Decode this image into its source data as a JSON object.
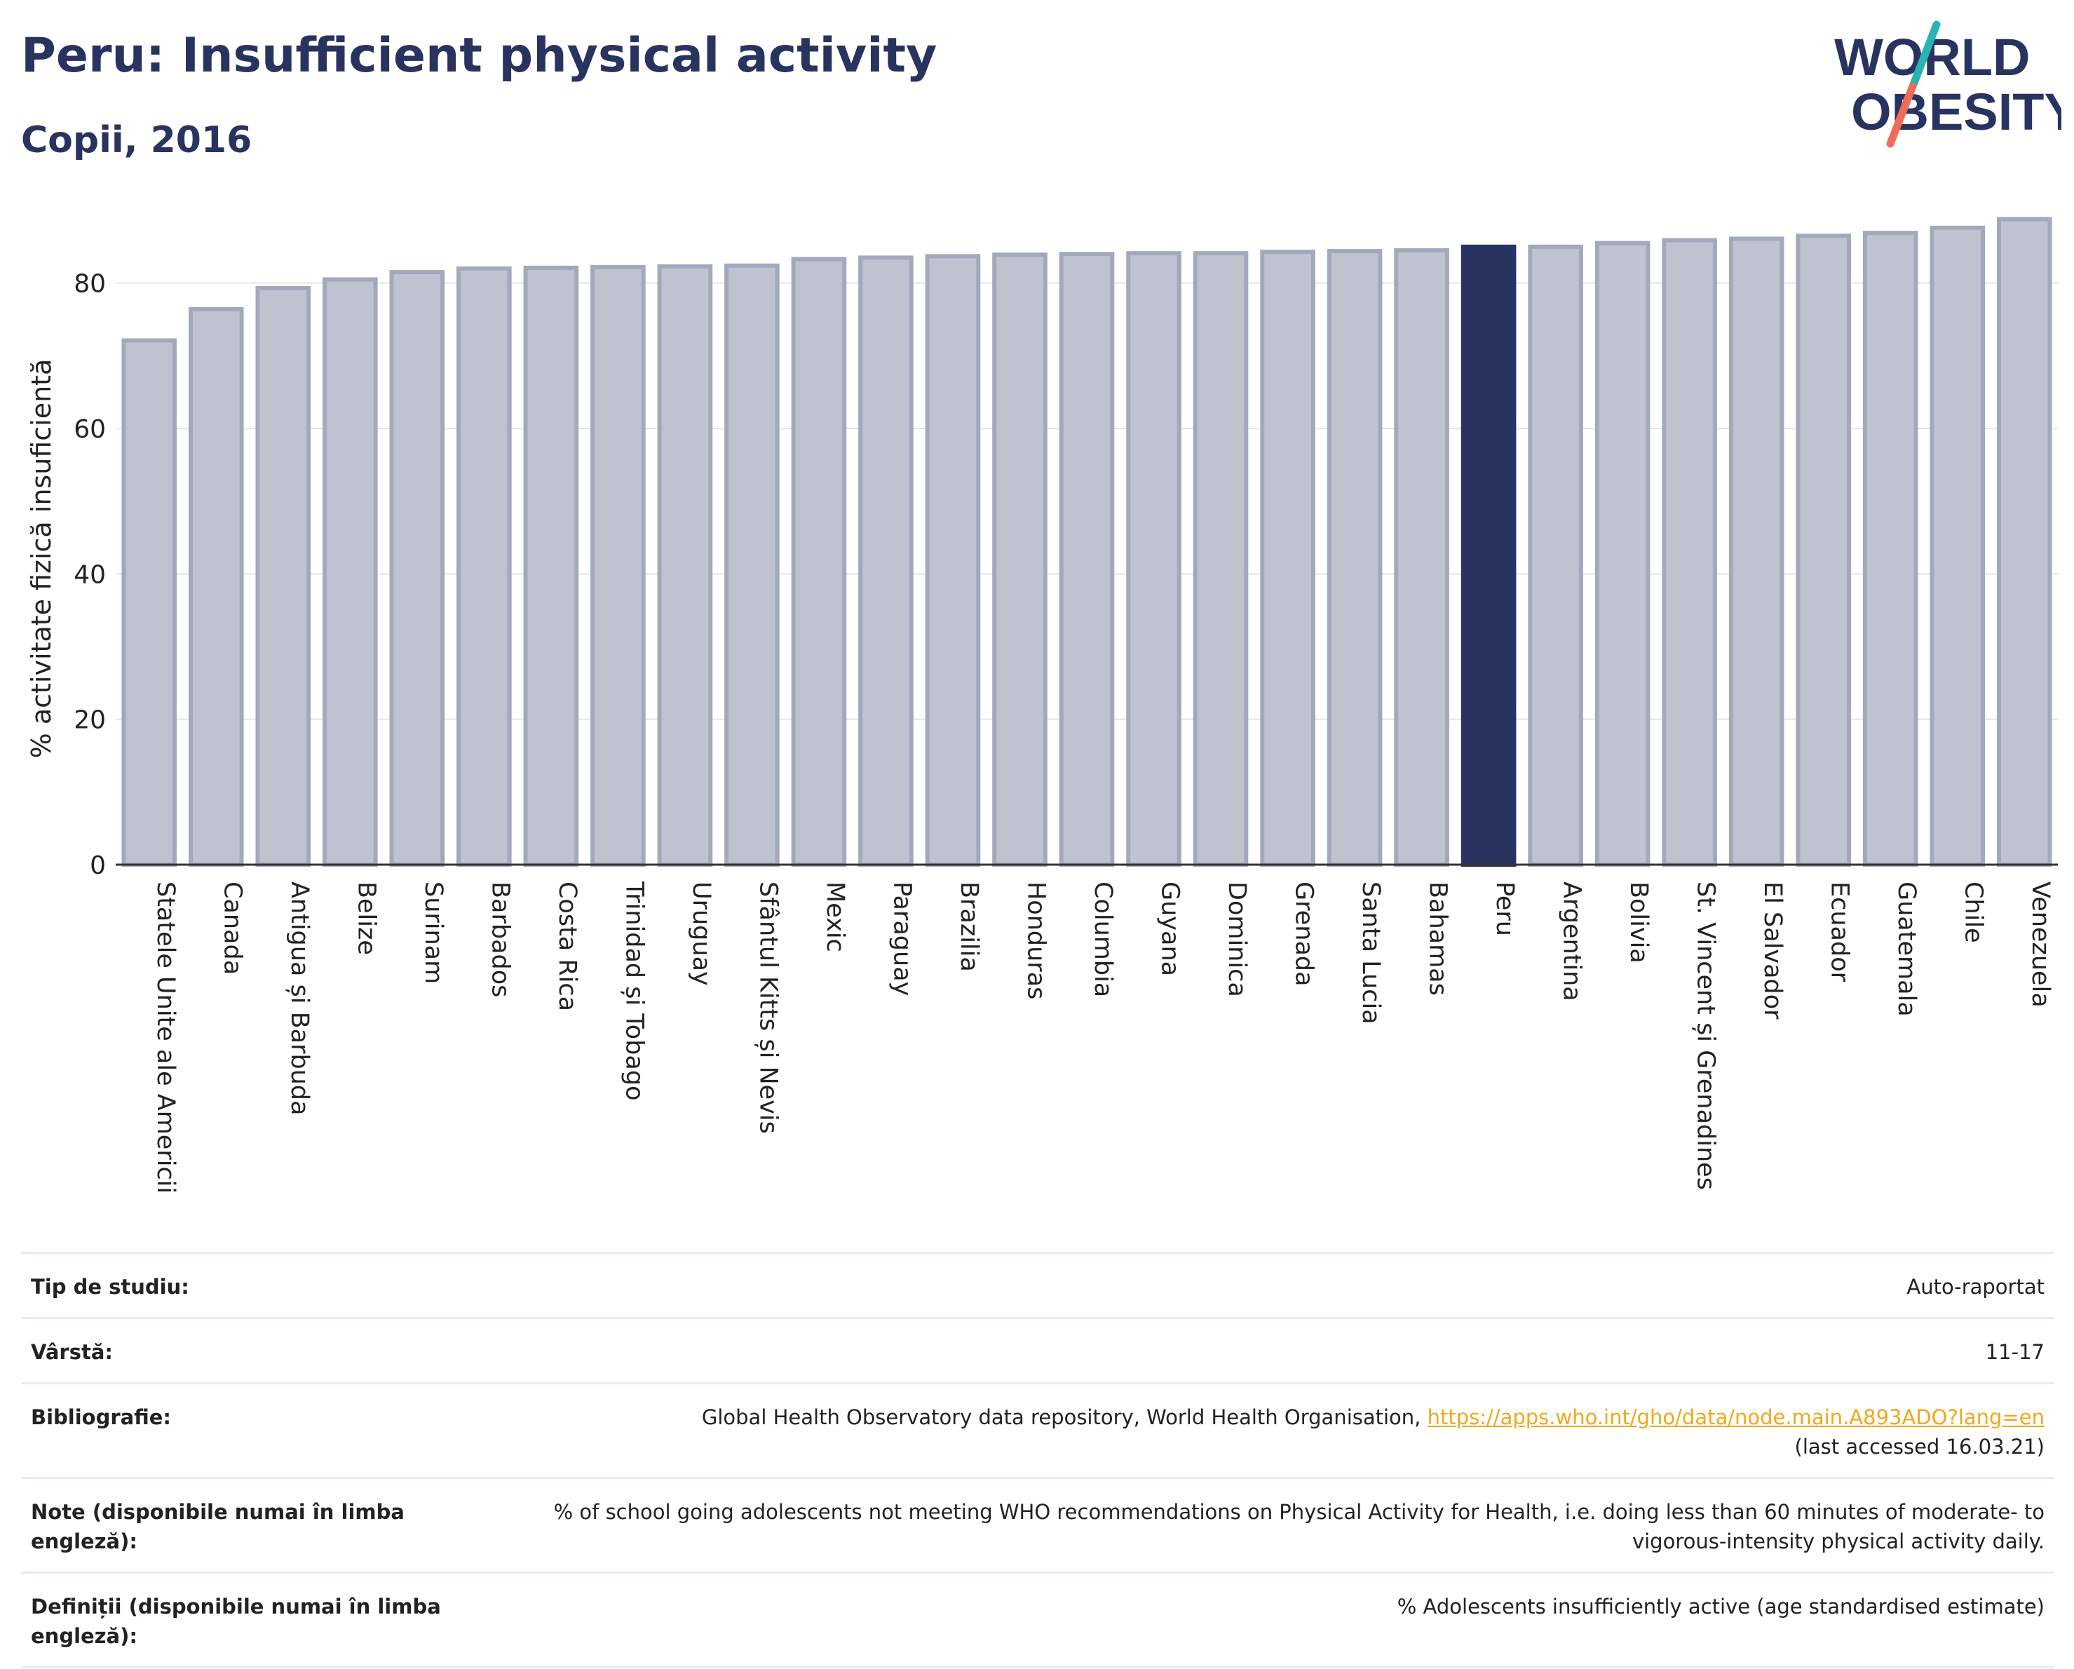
{
  "header": {
    "title": "Peru: Insufficient physical activity",
    "subtitle": "Copii, 2016"
  },
  "logo": {
    "line1": "WORLD",
    "line2": "OBESITY",
    "colors": {
      "text": "#283360",
      "slash_top": "#2ab3b1",
      "slash_bottom": "#ef6c5a"
    }
  },
  "colors": {
    "bar_default": "#bfc3d0",
    "bar_default_border": "#a3a8bd",
    "bar_highlight": "#283360",
    "axis_text": "#222222",
    "grid": "#e3e5ec"
  },
  "chart_data": {
    "type": "bar",
    "title": "Peru: Insufficient physical activity",
    "subtitle": "Copii, 2016",
    "xlabel": "",
    "ylabel": "% activitate fizică insuficientă",
    "ylim": [
      0,
      90
    ],
    "yticks": [
      0,
      20,
      40,
      60,
      80
    ],
    "grid": true,
    "highlight": "Peru",
    "categories": [
      "Statele Unite ale Americii",
      "Canada",
      "Antigua și Barbuda",
      "Belize",
      "Surinam",
      "Barbados",
      "Costa Rica",
      "Trinidad și Tobago",
      "Uruguay",
      "Sfântul Kitts și Nevis",
      "Mexic",
      "Paraguay",
      "Brazilia",
      "Honduras",
      "Columbia",
      "Guyana",
      "Dominica",
      "Grenada",
      "Santa Lucia",
      "Bahamas",
      "Peru",
      "Argentina",
      "Bolivia",
      "St. Vincent și Grenadines",
      "El Salvador",
      "Ecuador",
      "Guatemala",
      "Chile",
      "Venezuela"
    ],
    "values": [
      72.1,
      76.4,
      79.3,
      80.5,
      81.5,
      82.0,
      82.1,
      82.2,
      82.3,
      82.4,
      83.3,
      83.5,
      83.7,
      83.9,
      84.0,
      84.1,
      84.1,
      84.3,
      84.4,
      84.5,
      85.0,
      85.0,
      85.5,
      85.9,
      86.1,
      86.5,
      86.9,
      87.6,
      88.8
    ]
  },
  "info": {
    "rows": [
      {
        "label": "Tip de studiu:",
        "value": "Auto-raportat"
      },
      {
        "label": "Vârstă:",
        "value": "11-17"
      },
      {
        "label": "Bibliografie:",
        "value": "Global Health Observatory data repository, World Health Organisation, ",
        "link": "https://apps.who.int/gho/data/node.main.A893ADO?lang=en",
        "value2": "(last accessed 16.03.21)"
      },
      {
        "label": "Note (disponibile numai în limba engleză):",
        "value": "% of school going adolescents not meeting WHO recommendations on Physical Activity for Health, i.e. doing less than 60 minutes of moderate- to vigorous-intensity physical activity daily."
      },
      {
        "label": "Definiții (disponibile numai în limba engleză):",
        "value": "% Adolescents insufficiently active (age standardised estimate)"
      }
    ]
  }
}
